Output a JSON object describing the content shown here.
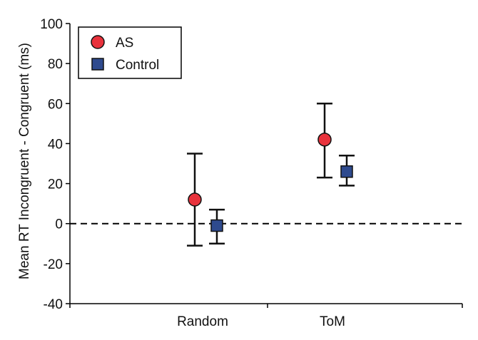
{
  "chart_data": {
    "type": "scatter",
    "title": "",
    "xlabel": "",
    "ylabel": "Mean RT Incongruent - Congruent (ms)",
    "categories": [
      "Random",
      "ToM"
    ],
    "ylim": [
      -40,
      100
    ],
    "yticks": [
      -40,
      -20,
      0,
      20,
      40,
      60,
      80,
      100
    ],
    "reference_line": {
      "y": 0,
      "style": "dashed"
    },
    "grid": false,
    "legend": {
      "placement": "top-left"
    },
    "series": [
      {
        "name": "AS",
        "marker": "circle",
        "color": "#e8323c",
        "values": [
          12,
          42
        ],
        "error_low": [
          -11,
          23
        ],
        "error_high": [
          35,
          60
        ]
      },
      {
        "name": "Control",
        "marker": "square",
        "color": "#2e4a8e",
        "values": [
          -1,
          26
        ],
        "error_low": [
          -10,
          19
        ],
        "error_high": [
          7,
          34
        ]
      }
    ]
  }
}
